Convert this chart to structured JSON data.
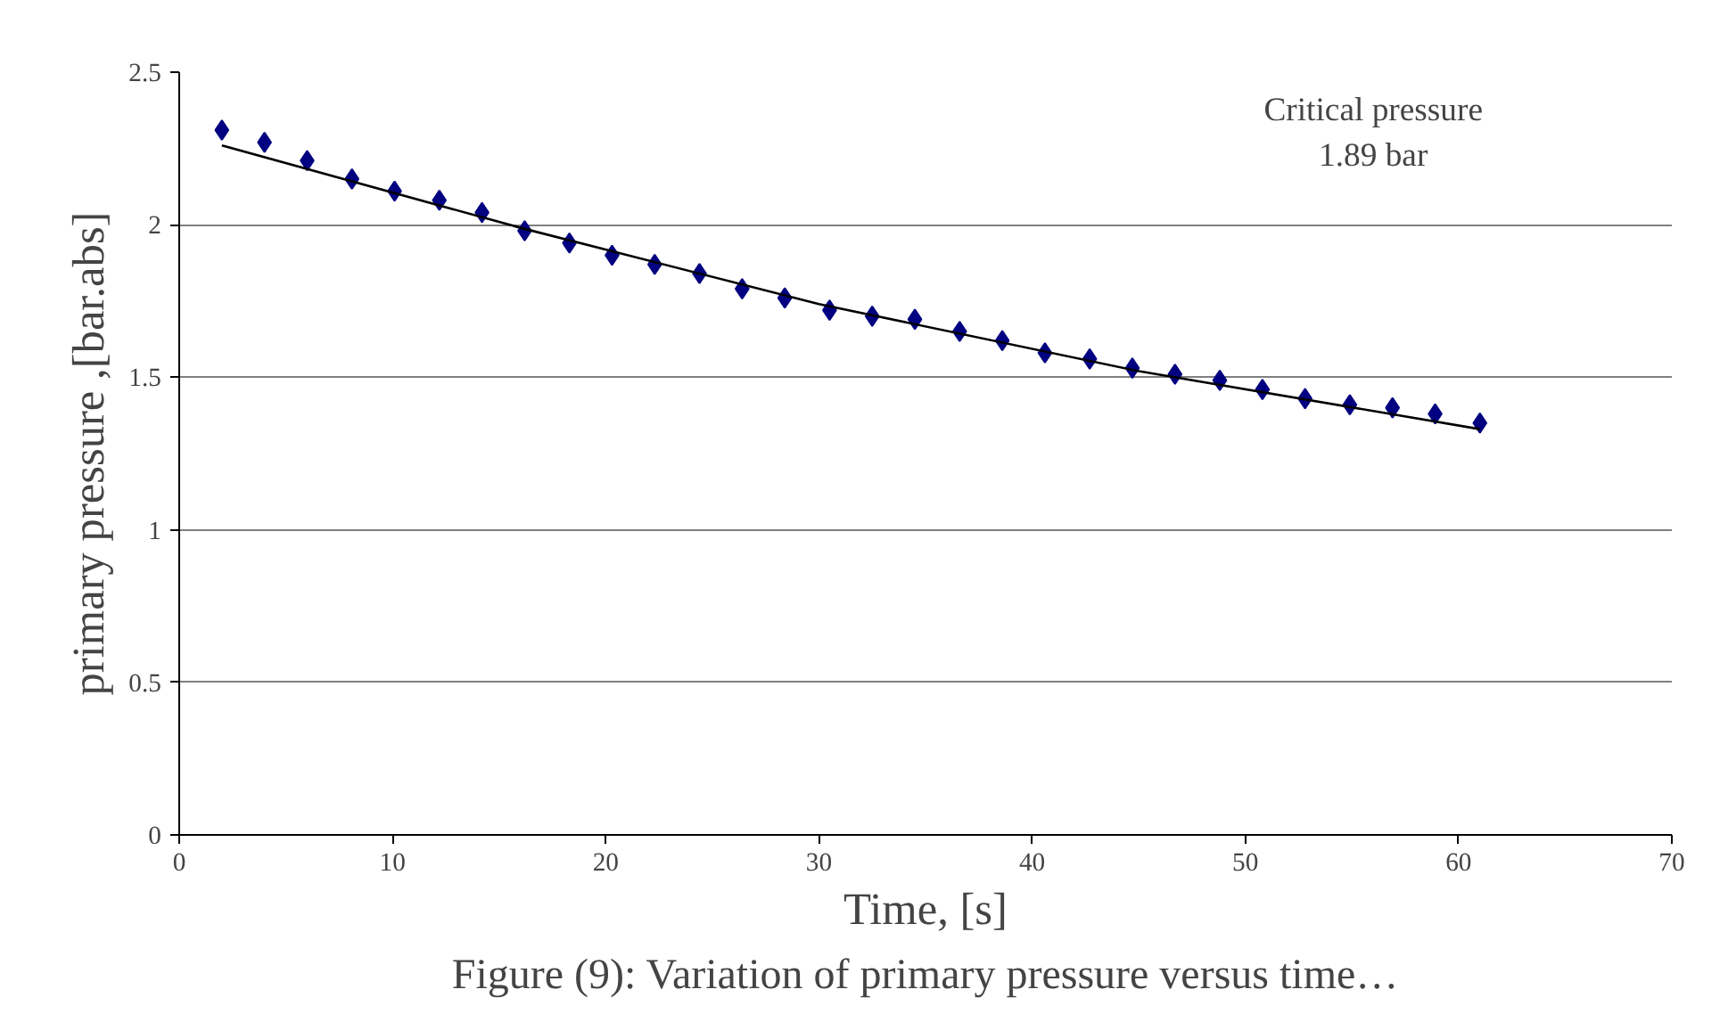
{
  "chart_data": {
    "type": "scatter",
    "xlabel": "Time, [s]",
    "ylabel": "primary pressure ,[bar.abs]",
    "annotations": [
      "Critical pressure\n1.89 bar",
      "Figure (9): Variation of primary pressure versus time…"
    ],
    "series": [
      {
        "color": "#000080",
        "marker": "diamond",
        "x": [
          2,
          4,
          6,
          8.1,
          10.1,
          12.2,
          14.2,
          16.2,
          18.3,
          20.3,
          22.3,
          24.4,
          26.4,
          28.4,
          30.5,
          32.5,
          34.5,
          36.6,
          38.6,
          40.6,
          42.7,
          44.7,
          46.7,
          48.8,
          50.8,
          52.8,
          54.9,
          56.9,
          58.9,
          61
        ],
        "values": [
          2.31,
          2.27,
          2.21,
          2.15,
          2.11,
          2.08,
          2.04,
          1.98,
          1.94,
          1.9,
          1.87,
          1.84,
          1.79,
          1.76,
          1.72,
          1.7,
          1.69,
          1.65,
          1.62,
          1.58,
          1.56,
          1.53,
          1.51,
          1.49,
          1.46,
          1.43,
          1.41,
          1.4,
          1.38,
          1.35
        ]
      },
      {
        "type": "line",
        "color": "#000000",
        "marker": "none",
        "x": [
          2,
          16,
          30,
          45,
          61
        ],
        "values": [
          2.26,
          1.99,
          1.74,
          1.52,
          1.33
        ]
      }
    ],
    "xlim": [
      0,
      70
    ],
    "xticks": [
      0,
      10,
      20,
      30,
      40,
      50,
      60,
      70
    ],
    "ylim": [
      0,
      2.5
    ],
    "yticks": [
      0,
      0.5,
      1,
      1.5,
      2,
      2.5
    ],
    "grid": "y"
  }
}
